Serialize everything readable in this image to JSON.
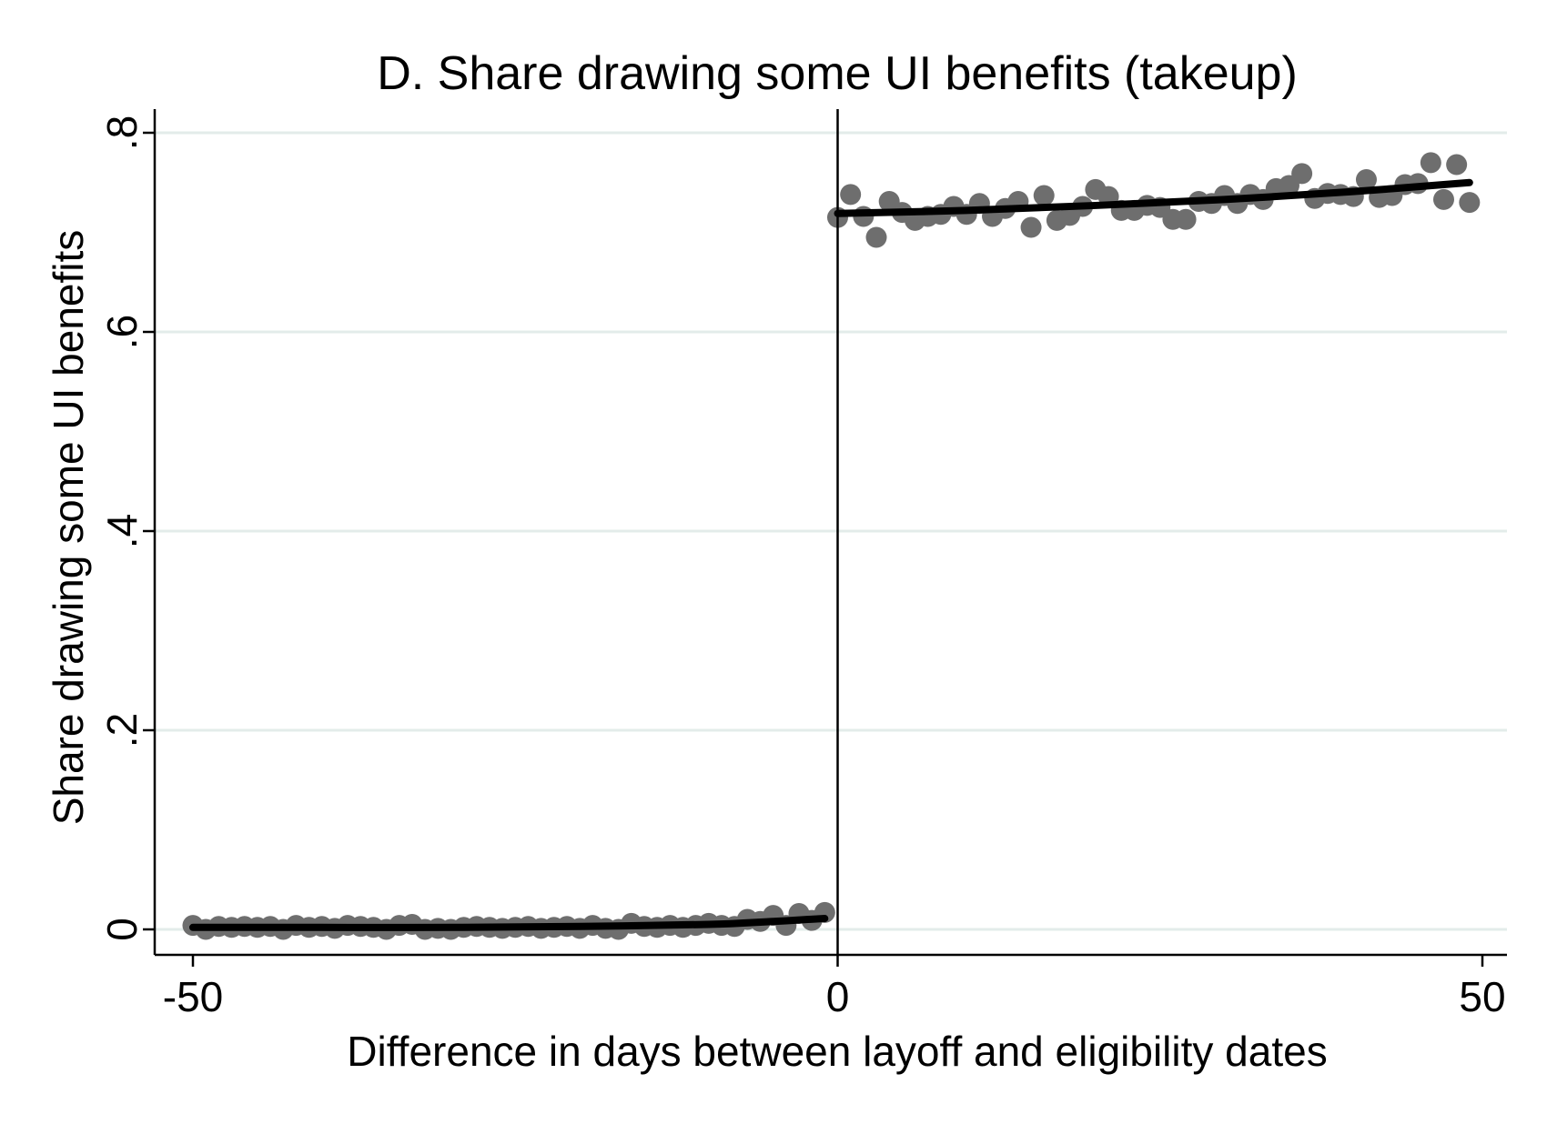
{
  "chart_data": {
    "type": "scatter",
    "title": "D. Share drawing some UI benefits (takeup)",
    "xlabel": "Difference in days between layoff and eligibility dates",
    "ylabel": "Share drawing some UI benefits",
    "xlim": [
      -50,
      50
    ],
    "ylim": [
      0,
      0.8
    ],
    "x_ticks": [
      -50,
      0,
      50
    ],
    "x_tick_labels": [
      "-50",
      "0",
      "50"
    ],
    "y_ticks": [
      0,
      0.2,
      0.4,
      0.6,
      0.8
    ],
    "y_tick_labels": [
      "0",
      ".2",
      ".4",
      ".6",
      ".8"
    ],
    "grid": true,
    "cutoff_line_x": 0,
    "colors": {
      "points": "#6e6e6e",
      "fit": "#000000",
      "grid": "#e3ecea",
      "axis": "#000000"
    },
    "series": [
      {
        "kind": "points",
        "x": [
          -50,
          -49,
          -48,
          -47,
          -46,
          -45,
          -44,
          -43,
          -42,
          -41,
          -40,
          -39,
          -38,
          -37,
          -36,
          -35,
          -34,
          -33,
          -32,
          -31,
          -30,
          -29,
          -28,
          -27,
          -26,
          -25,
          -24,
          -23,
          -22,
          -21,
          -20,
          -19,
          -18,
          -17,
          -16,
          -15,
          -14,
          -13,
          -12,
          -11,
          -10,
          -9,
          -8,
          -7,
          -6,
          -5,
          -4,
          -3,
          -2,
          -1,
          0,
          1,
          2,
          3,
          4,
          5,
          6,
          7,
          8,
          9,
          10,
          11,
          12,
          13,
          14,
          15,
          16,
          17,
          18,
          19,
          20,
          21,
          22,
          23,
          24,
          25,
          26,
          27,
          28,
          29,
          30,
          31,
          32,
          33,
          34,
          35,
          36,
          37,
          38,
          39,
          40,
          41,
          42,
          43,
          44,
          45,
          46,
          47,
          48,
          49
        ],
        "y": [
          0.004,
          0.0,
          0.003,
          0.002,
          0.003,
          0.002,
          0.003,
          0.0,
          0.004,
          0.002,
          0.003,
          0.001,
          0.004,
          0.003,
          0.002,
          0.0,
          0.004,
          0.005,
          0.0,
          0.001,
          0.0,
          0.002,
          0.003,
          0.002,
          0.001,
          0.002,
          0.003,
          0.001,
          0.002,
          0.003,
          0.001,
          0.004,
          0.001,
          0.0,
          0.006,
          0.003,
          0.002,
          0.004,
          0.002,
          0.004,
          0.006,
          0.004,
          0.003,
          0.01,
          0.008,
          0.014,
          0.004,
          0.016,
          0.009,
          0.017,
          0.715,
          0.738,
          0.716,
          0.695,
          0.731,
          0.72,
          0.712,
          0.716,
          0.718,
          0.726,
          0.718,
          0.729,
          0.716,
          0.724,
          0.731,
          0.705,
          0.737,
          0.712,
          0.717,
          0.726,
          0.743,
          0.736,
          0.722,
          0.722,
          0.727,
          0.725,
          0.713,
          0.713,
          0.731,
          0.729,
          0.737,
          0.729,
          0.738,
          0.733,
          0.744,
          0.747,
          0.759,
          0.734,
          0.739,
          0.738,
          0.736,
          0.753,
          0.735,
          0.737,
          0.748,
          0.749,
          0.77,
          0.733,
          0.768,
          0.73
        ]
      },
      {
        "kind": "fit-left",
        "x": [
          -50,
          -40,
          -30,
          -20,
          -10,
          -5,
          -1
        ],
        "y": [
          0.002,
          0.002,
          0.002,
          0.003,
          0.005,
          0.008,
          0.011
        ]
      },
      {
        "kind": "fit-right",
        "x": [
          0,
          10,
          20,
          30,
          40,
          49
        ],
        "y": [
          0.719,
          0.722,
          0.727,
          0.733,
          0.741,
          0.75
        ]
      }
    ]
  }
}
